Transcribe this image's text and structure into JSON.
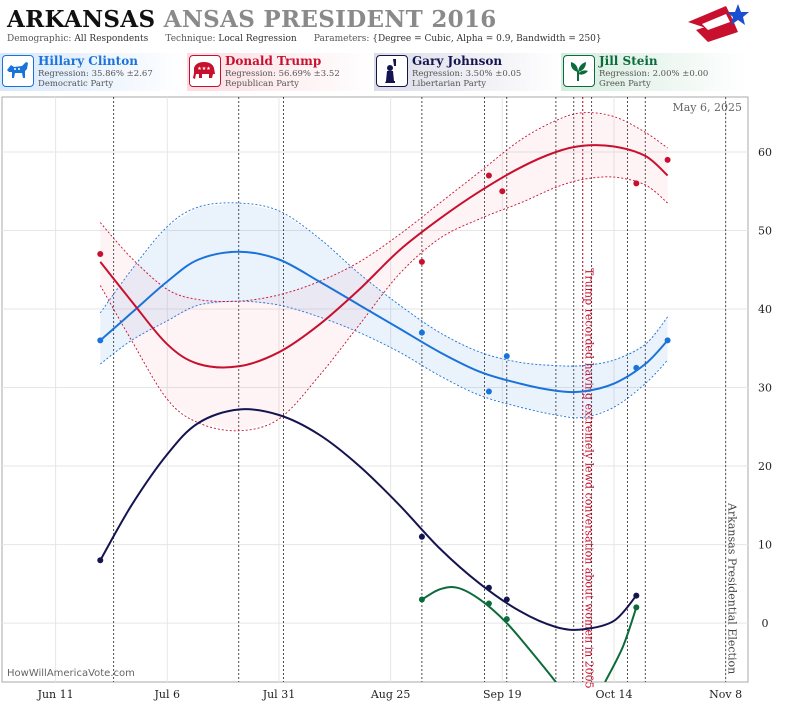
{
  "header": {
    "title_state": "ARKANSAS",
    "title_rest": "ANSAS PRESIDENT 2016",
    "demographic_label": "Demographic:",
    "demographic_value": "All Respondents",
    "technique_label": "Technique:",
    "technique_value": "Local Regression",
    "parameters_label": "Parameters:",
    "parameters_value": "{Degree = Cubic, Alpha = 0.9, Bandwidth = 250}"
  },
  "candidates": [
    {
      "name": "Hillary Clinton",
      "regression": "Regression: 35.86% ±2.67",
      "party": "Democratic Party",
      "color": "#1a73d9",
      "icon": "donkey-icon"
    },
    {
      "name": "Donald Trump",
      "regression": "Regression: 56.69% ±3.52",
      "party": "Republican Party",
      "color": "#c8102e",
      "icon": "elephant-icon"
    },
    {
      "name": "Gary Johnson",
      "regression": "Regression: 3.50% ±0.05",
      "party": "Libertarian Party",
      "color": "#141450",
      "icon": "liberty-icon"
    },
    {
      "name": "Jill Stein",
      "regression": "Regression: 2.00% ±0.00",
      "party": "Green Party",
      "color": "#0b6b3a",
      "icon": "leaf-icon"
    }
  ],
  "watermark": "HowWillAmericaVote.com",
  "chart_data": {
    "type": "line",
    "date_label": "May 6, 2025",
    "x_ticks": [
      "Jun 11",
      "Jul 6",
      "Jul 31",
      "Aug 25",
      "Sep 19",
      "Oct 14",
      "Nov 8"
    ],
    "x_tick_dates": [
      "2016-06-11",
      "2016-07-06",
      "2016-07-31",
      "2016-08-25",
      "2016-09-19",
      "2016-10-14",
      "2016-11-08"
    ],
    "xlim": [
      "2016-05-30",
      "2016-11-13"
    ],
    "ylim": [
      -7.5,
      67
    ],
    "y_ticks": [
      0,
      10,
      20,
      30,
      40,
      50,
      60
    ],
    "gridlines": true,
    "annotations": [
      {
        "text": "Trump recorded having extremely lewd conversation about women in 2005",
        "date": "2016-10-07",
        "color": "#c8102e"
      },
      {
        "text": "Arkansas Presidential Election",
        "date": "2016-11-08",
        "color": "#444444"
      }
    ],
    "poll_dates": [
      "2016-06-24",
      "2016-07-22",
      "2016-08-01",
      "2016-09-01",
      "2016-09-15",
      "2016-09-20",
      "2016-10-01",
      "2016-10-05",
      "2016-10-07",
      "2016-10-09",
      "2016-10-17",
      "2016-10-21"
    ],
    "series": [
      {
        "name": "Hillary Clinton",
        "color": "#1a73d9",
        "band_color": "#1a73d9",
        "points": [
          [
            "2016-06-21",
            36
          ],
          [
            "2016-09-01",
            37
          ],
          [
            "2016-09-16",
            29.5
          ],
          [
            "2016-09-20",
            34
          ],
          [
            "2016-10-19",
            32.5
          ],
          [
            "2016-10-26",
            36
          ]
        ],
        "fit": [
          [
            "2016-06-21",
            36
          ],
          [
            "2016-06-28",
            39.5
          ],
          [
            "2016-07-06",
            43.5
          ],
          [
            "2016-07-13",
            46.3
          ],
          [
            "2016-07-22",
            47.3
          ],
          [
            "2016-07-31",
            46.3
          ],
          [
            "2016-08-09",
            43.5
          ],
          [
            "2016-08-18",
            40.5
          ],
          [
            "2016-08-27",
            37.5
          ],
          [
            "2016-09-05",
            34.5
          ],
          [
            "2016-09-14",
            32
          ],
          [
            "2016-09-23",
            30.5
          ],
          [
            "2016-10-01",
            29.6
          ],
          [
            "2016-10-07",
            29.5
          ],
          [
            "2016-10-14",
            30.5
          ],
          [
            "2016-10-21",
            33
          ],
          [
            "2016-10-26",
            36
          ]
        ],
        "upper": [
          [
            "2016-06-21",
            39.5
          ],
          [
            "2016-06-28",
            45
          ],
          [
            "2016-07-06",
            50.5
          ],
          [
            "2016-07-13",
            53
          ],
          [
            "2016-07-22",
            53.5
          ],
          [
            "2016-07-31",
            52.5
          ],
          [
            "2016-08-09",
            49
          ],
          [
            "2016-08-18",
            44.5
          ],
          [
            "2016-08-27",
            40.5
          ],
          [
            "2016-09-05",
            37
          ],
          [
            "2016-09-14",
            34.5
          ],
          [
            "2016-09-23",
            33.2
          ],
          [
            "2016-10-01",
            32.8
          ],
          [
            "2016-10-07",
            32.8
          ],
          [
            "2016-10-14",
            33.5
          ],
          [
            "2016-10-21",
            35.5
          ],
          [
            "2016-10-26",
            39
          ]
        ],
        "lower": [
          [
            "2016-06-21",
            33
          ],
          [
            "2016-06-28",
            36
          ],
          [
            "2016-07-06",
            38.5
          ],
          [
            "2016-07-13",
            40.5
          ],
          [
            "2016-07-22",
            41
          ],
          [
            "2016-07-31",
            40.5
          ],
          [
            "2016-08-09",
            39
          ],
          [
            "2016-08-18",
            37
          ],
          [
            "2016-08-27",
            34.5
          ],
          [
            "2016-09-05",
            31.5
          ],
          [
            "2016-09-14",
            29
          ],
          [
            "2016-09-23",
            27.5
          ],
          [
            "2016-10-01",
            26.5
          ],
          [
            "2016-10-07",
            26.2
          ],
          [
            "2016-10-14",
            27.5
          ],
          [
            "2016-10-21",
            30.5
          ],
          [
            "2016-10-26",
            33.5
          ]
        ]
      },
      {
        "name": "Donald Trump",
        "color": "#c8102e",
        "band_color": "#f08a9a",
        "points": [
          [
            "2016-06-21",
            47
          ],
          [
            "2016-09-01",
            46
          ],
          [
            "2016-09-16",
            57
          ],
          [
            "2016-09-19",
            55
          ],
          [
            "2016-10-19",
            56
          ],
          [
            "2016-10-26",
            59
          ]
        ],
        "fit": [
          [
            "2016-06-21",
            46
          ],
          [
            "2016-06-28",
            41
          ],
          [
            "2016-07-06",
            35.5
          ],
          [
            "2016-07-13",
            33
          ],
          [
            "2016-07-22",
            32.7
          ],
          [
            "2016-07-31",
            34.5
          ],
          [
            "2016-08-09",
            38
          ],
          [
            "2016-08-18",
            42.5
          ],
          [
            "2016-08-27",
            47.5
          ],
          [
            "2016-09-05",
            51.5
          ],
          [
            "2016-09-14",
            55
          ],
          [
            "2016-09-23",
            58
          ],
          [
            "2016-10-01",
            60
          ],
          [
            "2016-10-07",
            60.8
          ],
          [
            "2016-10-14",
            60.7
          ],
          [
            "2016-10-21",
            59.5
          ],
          [
            "2016-10-26",
            57
          ]
        ],
        "upper": [
          [
            "2016-06-21",
            51
          ],
          [
            "2016-06-28",
            46.5
          ],
          [
            "2016-07-06",
            42.5
          ],
          [
            "2016-07-13",
            41.2
          ],
          [
            "2016-07-22",
            41
          ],
          [
            "2016-07-31",
            41.8
          ],
          [
            "2016-08-09",
            43.5
          ],
          [
            "2016-08-18",
            46
          ],
          [
            "2016-08-27",
            49.5
          ],
          [
            "2016-09-05",
            53.5
          ],
          [
            "2016-09-14",
            57.5
          ],
          [
            "2016-09-23",
            61.5
          ],
          [
            "2016-10-01",
            64
          ],
          [
            "2016-10-07",
            65
          ],
          [
            "2016-10-14",
            64.5
          ],
          [
            "2016-10-21",
            62.5
          ],
          [
            "2016-10-26",
            60.5
          ]
        ],
        "lower": [
          [
            "2016-06-21",
            43
          ],
          [
            "2016-06-28",
            36
          ],
          [
            "2016-07-06",
            28.5
          ],
          [
            "2016-07-13",
            25.5
          ],
          [
            "2016-07-22",
            24.5
          ],
          [
            "2016-07-31",
            26
          ],
          [
            "2016-08-09",
            31.5
          ],
          [
            "2016-08-18",
            38
          ],
          [
            "2016-08-27",
            44.5
          ],
          [
            "2016-09-05",
            49
          ],
          [
            "2016-09-14",
            51.5
          ],
          [
            "2016-09-23",
            53.5
          ],
          [
            "2016-10-01",
            55.5
          ],
          [
            "2016-10-07",
            56.5
          ],
          [
            "2016-10-14",
            56.8
          ],
          [
            "2016-10-21",
            55.8
          ],
          [
            "2016-10-26",
            53.5
          ]
        ]
      },
      {
        "name": "Gary Johnson",
        "color": "#141450",
        "band_color": "#141450",
        "points": [
          [
            "2016-06-21",
            8
          ],
          [
            "2016-09-01",
            11
          ],
          [
            "2016-09-16",
            4.5
          ],
          [
            "2016-09-20",
            3
          ],
          [
            "2016-10-19",
            3.5
          ]
        ],
        "fit": [
          [
            "2016-06-21",
            8
          ],
          [
            "2016-06-28",
            15
          ],
          [
            "2016-07-06",
            21.5
          ],
          [
            "2016-07-13",
            25.5
          ],
          [
            "2016-07-22",
            27.2
          ],
          [
            "2016-07-31",
            26.5
          ],
          [
            "2016-08-09",
            24
          ],
          [
            "2016-08-18",
            20
          ],
          [
            "2016-08-27",
            15
          ],
          [
            "2016-09-05",
            9.5
          ],
          [
            "2016-09-14",
            5
          ],
          [
            "2016-09-23",
            1.5
          ],
          [
            "2016-10-01",
            -0.5
          ],
          [
            "2016-10-07",
            -0.8
          ],
          [
            "2016-10-14",
            0.3
          ],
          [
            "2016-10-19",
            3.5
          ]
        ]
      },
      {
        "name": "Jill Stein",
        "color": "#0b6b3a",
        "band_color": "#0b6b3a",
        "points": [
          [
            "2016-09-01",
            3
          ],
          [
            "2016-09-16",
            2.5
          ],
          [
            "2016-09-20",
            0.5
          ],
          [
            "2016-10-19",
            2
          ]
        ],
        "fit": [
          [
            "2016-09-01",
            3
          ],
          [
            "2016-09-05",
            4.3
          ],
          [
            "2016-09-09",
            4.5
          ],
          [
            "2016-09-14",
            3
          ],
          [
            "2016-09-20",
            0
          ],
          [
            "2016-09-26",
            -4
          ],
          [
            "2016-10-01",
            -7.5
          ]
        ],
        "fit2": [
          [
            "2016-10-12",
            -7.5
          ],
          [
            "2016-10-16",
            -3
          ],
          [
            "2016-10-19",
            2
          ]
        ]
      }
    ]
  }
}
